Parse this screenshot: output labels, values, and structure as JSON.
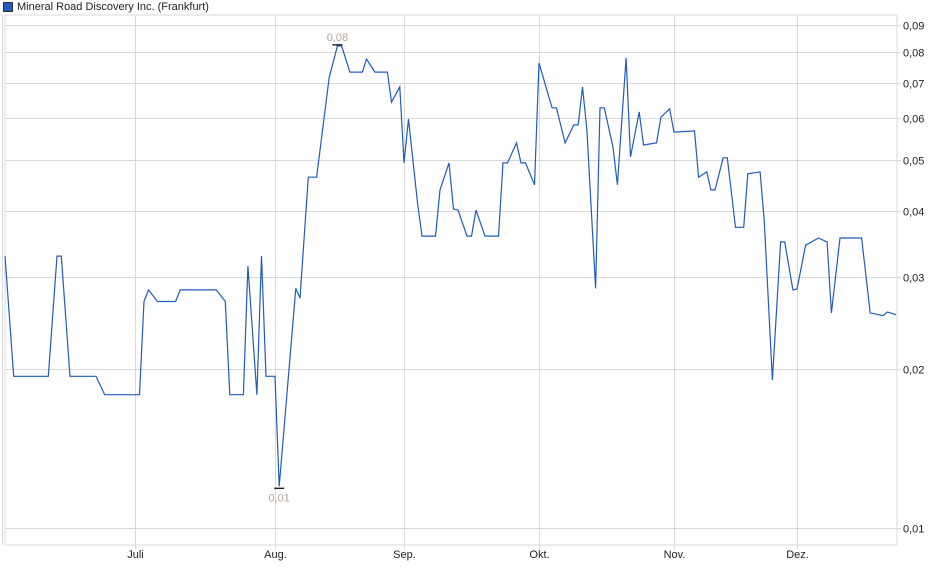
{
  "chart_data": {
    "type": "line",
    "title": "",
    "legend": {
      "position": "top-left",
      "entries": [
        "Mineral Road Discovery Inc. (Frankfurt)"
      ]
    },
    "y_scale": "log",
    "ylim": [
      0.0095,
      0.092
    ],
    "xlim": [
      "06-01",
      "12-24"
    ],
    "grid": true,
    "y_axis_side": "right",
    "y_ticks": [
      {
        "value": 0.09,
        "label": "0,09"
      },
      {
        "value": 0.08,
        "label": "0,08"
      },
      {
        "value": 0.07,
        "label": "0,07"
      },
      {
        "value": 0.06,
        "label": "0,06"
      },
      {
        "value": 0.05,
        "label": "0,05"
      },
      {
        "value": 0.04,
        "label": "0,04"
      },
      {
        "value": 0.03,
        "label": "0,03"
      },
      {
        "value": 0.02,
        "label": "0,02"
      },
      {
        "value": 0.01,
        "label": "0,01"
      }
    ],
    "x_ticks": [
      {
        "date": "07-01",
        "label": "Juli"
      },
      {
        "date": "08-01",
        "label": "Aug."
      },
      {
        "date": "09-01",
        "label": "Sep."
      },
      {
        "date": "10-01",
        "label": "Okt."
      },
      {
        "date": "11-01",
        "label": "Nov."
      },
      {
        "date": "12-01",
        "label": "Dez."
      }
    ],
    "annotations": [
      {
        "type": "max",
        "date": "08-16",
        "value": 0.0822,
        "label": "0,08"
      },
      {
        "type": "min",
        "date": "08-02",
        "value": 0.012,
        "label": "0,01"
      }
    ],
    "series": [
      {
        "name": "Mineral Road Discovery Inc. (Frankfurt)",
        "color": "#1f5bc0",
        "points": [
          [
            "06-01",
            0.0328
          ],
          [
            "06-03",
            0.0194
          ],
          [
            "06-11",
            0.0194
          ],
          [
            "06-13",
            0.0328
          ],
          [
            "06-14",
            0.0328
          ],
          [
            "06-16",
            0.0194
          ],
          [
            "06-22",
            0.0194
          ],
          [
            "06-24",
            0.0179
          ],
          [
            "07-02",
            0.0179
          ],
          [
            "07-03",
            0.0269
          ],
          [
            "07-04",
            0.0283
          ],
          [
            "07-06",
            0.0269
          ],
          [
            "07-10",
            0.0269
          ],
          [
            "07-11",
            0.0283
          ],
          [
            "07-19",
            0.0283
          ],
          [
            "07-21",
            0.0269
          ],
          [
            "07-22",
            0.0179
          ],
          [
            "07-25",
            0.0179
          ],
          [
            "07-26",
            0.0314
          ],
          [
            "07-28",
            0.0179
          ],
          [
            "07-29",
            0.0328
          ],
          [
            "07-30",
            0.0194
          ],
          [
            "08-01",
            0.0194
          ],
          [
            "08-02",
            0.012
          ],
          [
            "08-06",
            0.0285
          ],
          [
            "08-07",
            0.0273
          ],
          [
            "08-09",
            0.0463
          ],
          [
            "08-11",
            0.0463
          ],
          [
            "08-14",
            0.0714
          ],
          [
            "08-16",
            0.0822
          ],
          [
            "08-17",
            0.0822
          ],
          [
            "08-19",
            0.0733
          ],
          [
            "08-22",
            0.0733
          ],
          [
            "08-23",
            0.0776
          ],
          [
            "08-25",
            0.0733
          ],
          [
            "08-28",
            0.0733
          ],
          [
            "08-29",
            0.0643
          ],
          [
            "08-31",
            0.0687
          ],
          [
            "09-01",
            0.0493
          ],
          [
            "09-02",
            0.0597
          ],
          [
            "09-04",
            0.0414
          ],
          [
            "09-05",
            0.0358
          ],
          [
            "09-08",
            0.0358
          ],
          [
            "09-09",
            0.0438
          ],
          [
            "09-11",
            0.0493
          ],
          [
            "09-12",
            0.0403
          ],
          [
            "09-13",
            0.0401
          ],
          [
            "09-15",
            0.0358
          ],
          [
            "09-16",
            0.0358
          ],
          [
            "09-17",
            0.0401
          ],
          [
            "09-19",
            0.0358
          ],
          [
            "09-22",
            0.0358
          ],
          [
            "09-23",
            0.0493
          ],
          [
            "09-24",
            0.0493
          ],
          [
            "09-26",
            0.0538
          ],
          [
            "09-27",
            0.0493
          ],
          [
            "09-28",
            0.0493
          ],
          [
            "09-30",
            0.0448
          ],
          [
            "10-01",
            0.0763
          ],
          [
            "10-03",
            0.0669
          ],
          [
            "10-04",
            0.0627
          ],
          [
            "10-05",
            0.0627
          ],
          [
            "10-07",
            0.0538
          ],
          [
            "10-09",
            0.0582
          ],
          [
            "10-10",
            0.0582
          ],
          [
            "10-11",
            0.0687
          ],
          [
            "10-12",
            0.0569
          ],
          [
            "10-14",
            0.0285
          ],
          [
            "10-15",
            0.0627
          ],
          [
            "10-16",
            0.0627
          ],
          [
            "10-18",
            0.0528
          ],
          [
            "10-19",
            0.0448
          ],
          [
            "10-21",
            0.078
          ],
          [
            "10-22",
            0.0506
          ],
          [
            "10-24",
            0.0616
          ],
          [
            "10-25",
            0.0533
          ],
          [
            "10-28",
            0.0538
          ],
          [
            "10-29",
            0.0602
          ],
          [
            "10-31",
            0.0624
          ],
          [
            "11-01",
            0.0564
          ],
          [
            "11-06",
            0.0567
          ],
          [
            "11-07",
            0.0463
          ],
          [
            "11-09",
            0.0474
          ],
          [
            "11-10",
            0.0438
          ],
          [
            "11-11",
            0.0438
          ],
          [
            "11-13",
            0.0504
          ],
          [
            "11-14",
            0.0504
          ],
          [
            "11-16",
            0.0372
          ],
          [
            "11-18",
            0.0372
          ],
          [
            "11-19",
            0.047
          ],
          [
            "11-22",
            0.0474
          ],
          [
            "11-23",
            0.0384
          ],
          [
            "11-25",
            0.0191
          ],
          [
            "11-27",
            0.0349
          ],
          [
            "11-28",
            0.0349
          ],
          [
            "11-30",
            0.0283
          ],
          [
            "12-01",
            0.0284
          ],
          [
            "12-03",
            0.0344
          ],
          [
            "12-06",
            0.0355
          ],
          [
            "12-08",
            0.0349
          ],
          [
            "12-09",
            0.0256
          ],
          [
            "12-11",
            0.0355
          ],
          [
            "12-16",
            0.0355
          ],
          [
            "12-18",
            0.0256
          ],
          [
            "12-21",
            0.0253
          ],
          [
            "12-22",
            0.0257
          ],
          [
            "12-24",
            0.0254
          ]
        ]
      }
    ]
  }
}
